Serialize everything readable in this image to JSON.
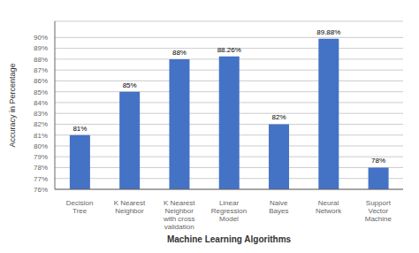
{
  "chart_data": {
    "type": "bar",
    "categories": [
      "Decision\nTree",
      "K Nearest\nNeighbor",
      "K Nearest\nNeighbor\nwith cross\nvalidation",
      "Linear\nRegression\nModel",
      "Naive\nBayes",
      "Neural\nNetwork",
      "Support\nVector\nMachine"
    ],
    "values": [
      81,
      85,
      88,
      88.26,
      82,
      89.88,
      78
    ],
    "value_labels": [
      "81%",
      "85%",
      "88%",
      "88.26%",
      "82%",
      "89.88%",
      "78%"
    ],
    "data_labels": true,
    "color": "#4472C4",
    "xlabel": "Machine Learning Algorithms",
    "ylabel": "Accuracy in Percentage",
    "ylim": [
      76,
      91.5
    ],
    "yticks": [
      {
        "value": 76,
        "label": "76%"
      },
      {
        "value": 77,
        "label": "77%"
      },
      {
        "value": 78,
        "label": "78%"
      },
      {
        "value": 79,
        "label": "79%"
      },
      {
        "value": 80,
        "label": "80%"
      },
      {
        "value": 81,
        "label": "81%"
      },
      {
        "value": 82,
        "label": "82%"
      },
      {
        "value": 83,
        "label": "83%"
      },
      {
        "value": 84,
        "label": "84%"
      },
      {
        "value": 85,
        "label": "85%"
      },
      {
        "value": 86,
        "label": "86%"
      },
      {
        "value": 87,
        "label": "87%"
      },
      {
        "value": 88,
        "label": "88%"
      },
      {
        "value": 89,
        "label": "89%"
      },
      {
        "value": 90,
        "label": "90%"
      }
    ],
    "grid": true
  }
}
